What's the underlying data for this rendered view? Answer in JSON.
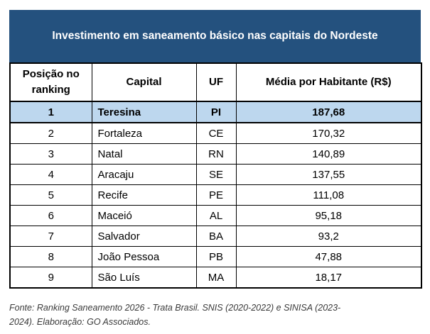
{
  "chart_data": {
    "type": "table",
    "title": "Investimento em saneamento básico nas capitais do Nordeste",
    "columns": [
      "Posição no ranking",
      "Capital",
      "UF",
      "Média por Habitante (R$)"
    ],
    "rows": [
      [
        "1",
        "Teresina",
        "PI",
        "187,68"
      ],
      [
        "2",
        "Fortaleza",
        "CE",
        "170,32"
      ],
      [
        "3",
        "Natal",
        "RN",
        "140,89"
      ],
      [
        "4",
        "Aracaju",
        "SE",
        "137,55"
      ],
      [
        "5",
        "Recife",
        "PE",
        "111,08"
      ],
      [
        "6",
        "Maceió",
        "AL",
        "95,18"
      ],
      [
        "7",
        "Salvador",
        "BA",
        "93,2"
      ],
      [
        "8",
        "João Pessoa",
        "PB",
        "47,88"
      ],
      [
        "9",
        "São Luís",
        "MA",
        "18,17"
      ]
    ],
    "values_numeric_brl_per_capita": [
      187.68,
      170.32,
      140.89,
      137.55,
      111.08,
      95.18,
      93.2,
      47.88,
      18.17
    ],
    "highlighted_row_index": 0,
    "source_lines": [
      "Fonte: Ranking Saneamento 2026 - Trata Brasil. SNIS (2020-2022) e SINISA (2023-",
      "2024). Elaboração: GO Associados."
    ]
  },
  "colors": {
    "title_band_bg": "#24517E",
    "title_text": "#FFFFFF",
    "highlight_row_bg": "#BDD7EE",
    "border": "#000000",
    "source_text": "#3A3A3A"
  }
}
